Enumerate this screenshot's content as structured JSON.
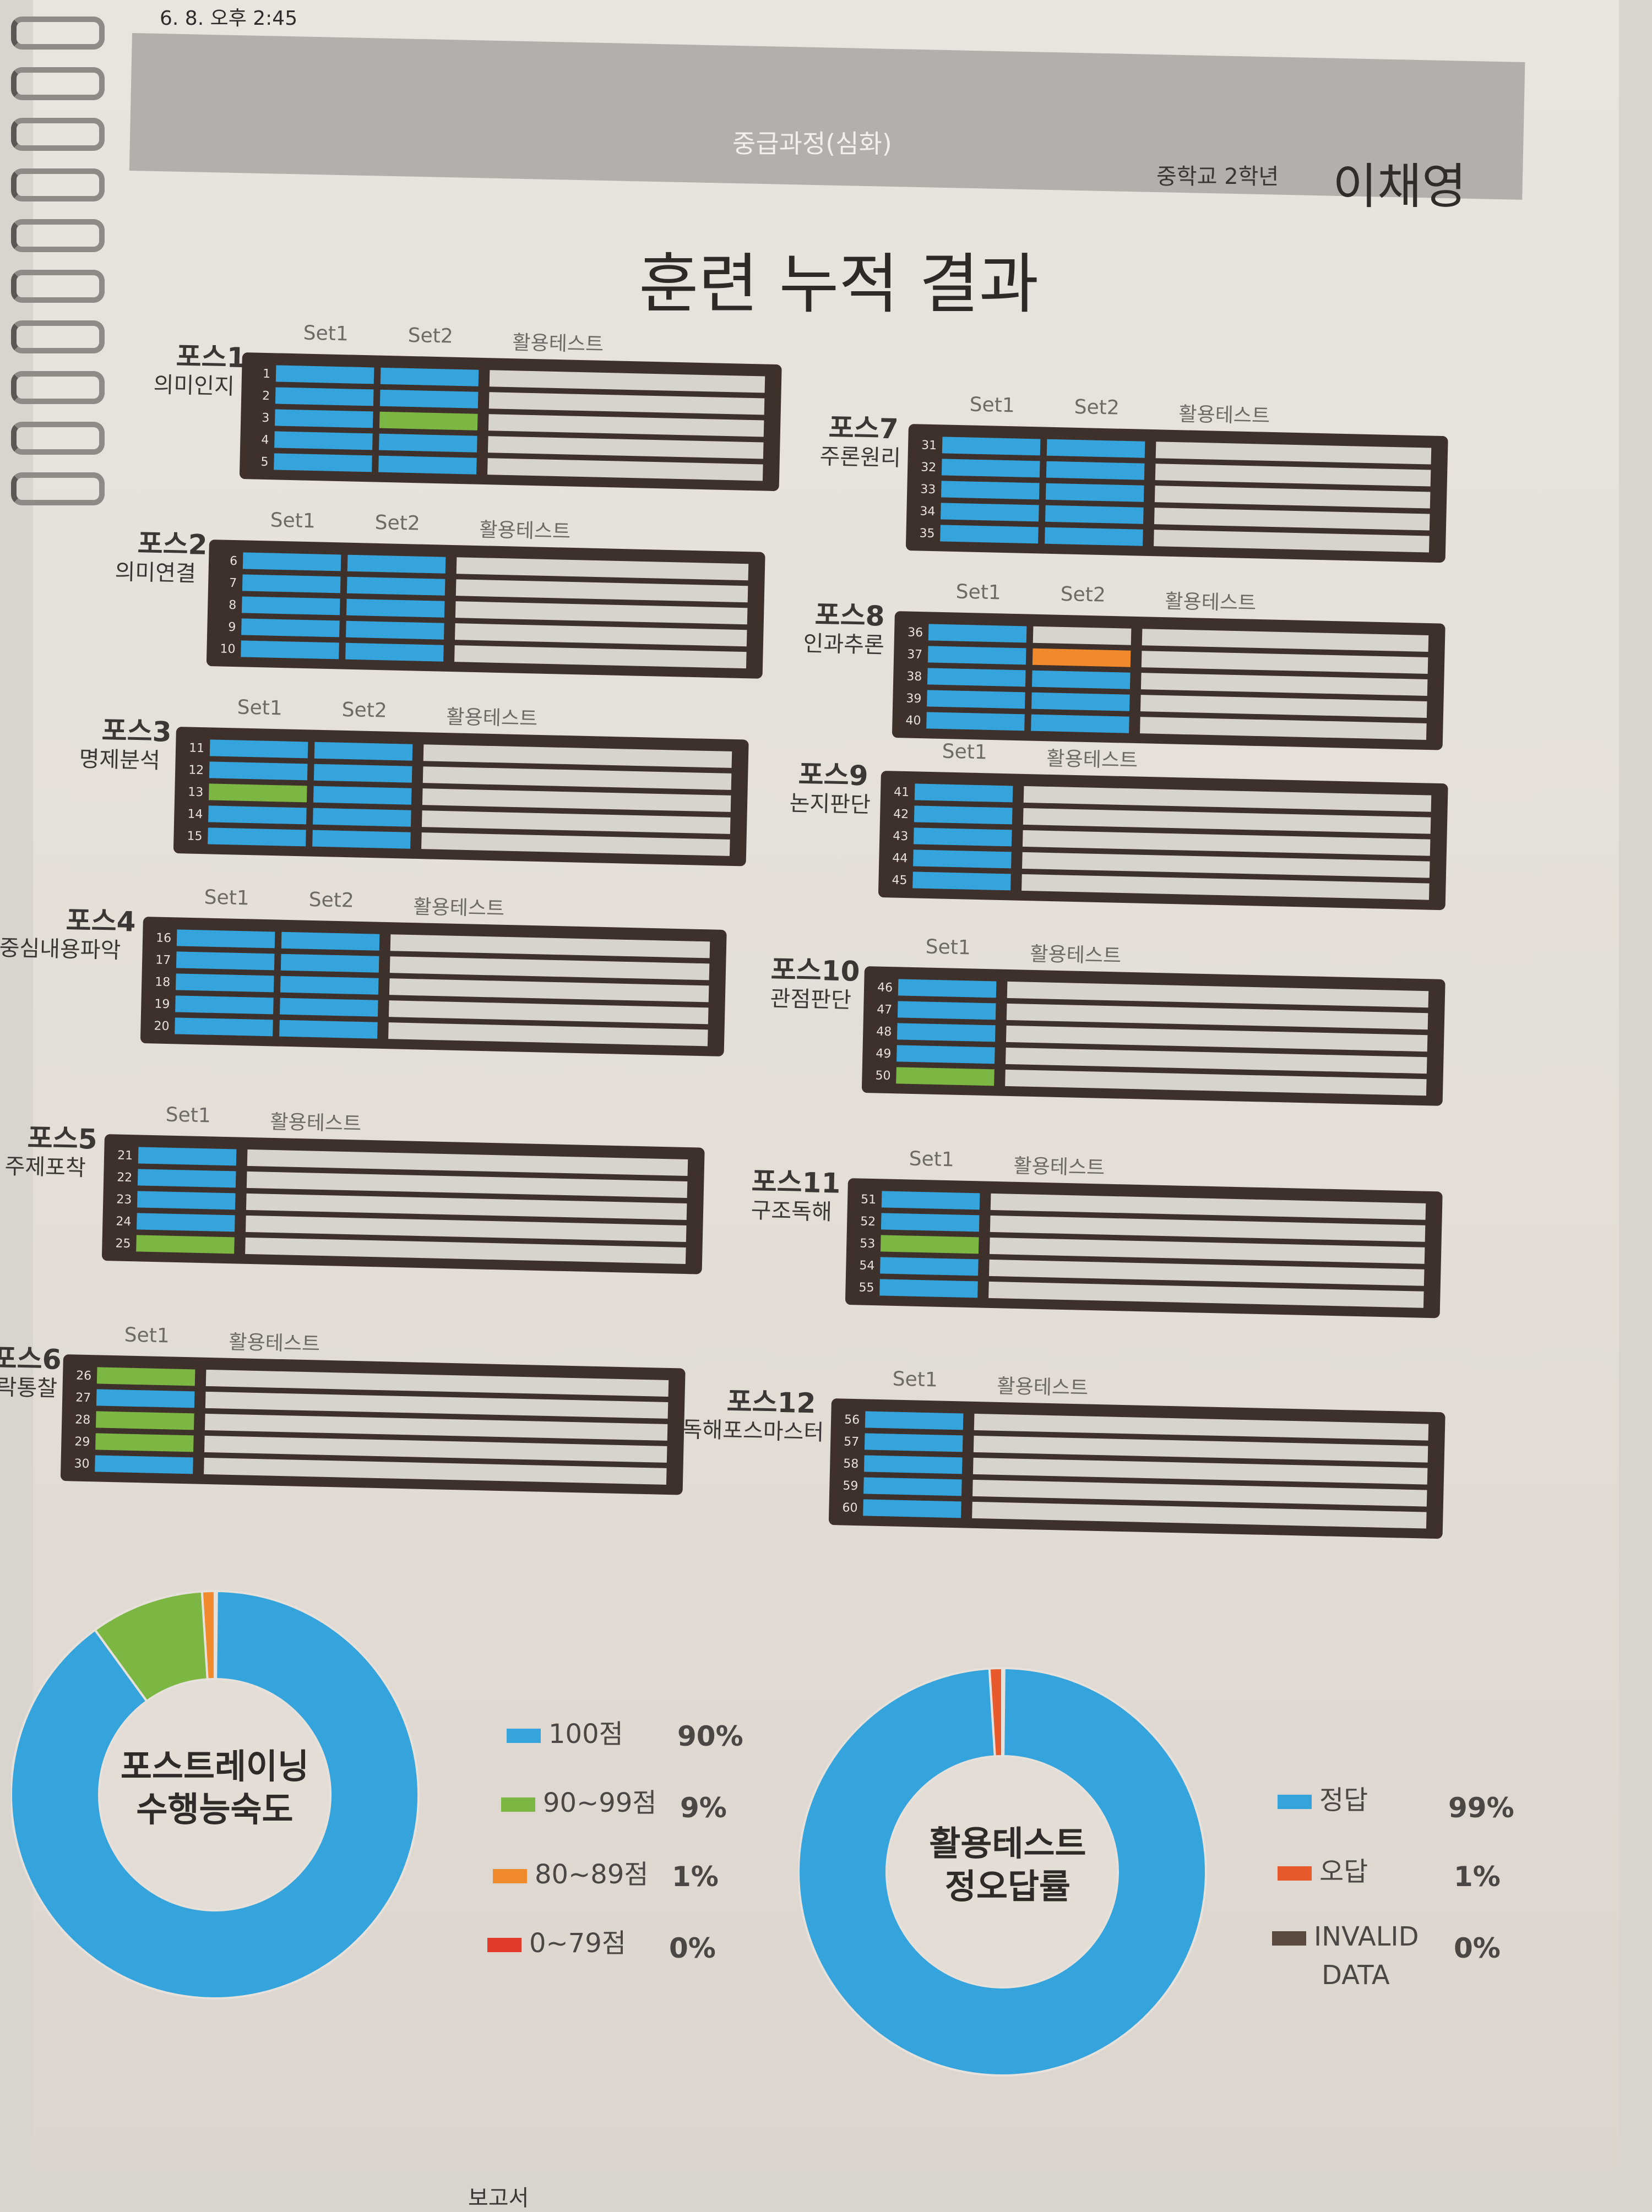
{
  "timestamp": "6. 8. 오후 2:45",
  "doc_label": "result_coaching",
  "header": {
    "course": "중급과정(심화)",
    "grade": "중학교 2학년",
    "student": "이채영"
  },
  "title": "훈련 누적 결과",
  "column_labels": {
    "set1": "Set1",
    "set2": "Set2",
    "test": "활용테스트"
  },
  "colors": {
    "blue": "#35a3dc",
    "green": "#7cb744",
    "orange": "#f08a2c",
    "red": "#e23b2b",
    "dark": "#5a4a40"
  },
  "forces": [
    {
      "name": "포스1",
      "sub": "의미인지",
      "start": 1,
      "sets": 2,
      "set1": [
        "blue",
        "blue",
        "blue",
        "blue",
        "blue"
      ],
      "set2": [
        "blue",
        "blue",
        "green",
        "blue",
        "blue"
      ]
    },
    {
      "name": "포스2",
      "sub": "의미연결",
      "start": 6,
      "sets": 2,
      "set1": [
        "blue",
        "blue",
        "blue",
        "blue",
        "blue"
      ],
      "set2": [
        "blue",
        "blue",
        "blue",
        "blue",
        "blue"
      ]
    },
    {
      "name": "포스3",
      "sub": "명제분석",
      "start": 11,
      "sets": 2,
      "set1": [
        "blue",
        "blue",
        "green",
        "blue",
        "blue"
      ],
      "set2": [
        "blue",
        "blue",
        "blue",
        "blue",
        "blue"
      ]
    },
    {
      "name": "포스4",
      "sub": "중심내용파악",
      "start": 16,
      "sets": 2,
      "set1": [
        "blue",
        "blue",
        "blue",
        "blue",
        "blue"
      ],
      "set2": [
        "blue",
        "blue",
        "blue",
        "blue",
        "blue"
      ]
    },
    {
      "name": "포스5",
      "sub": "주제포착",
      "start": 21,
      "sets": 1,
      "set1": [
        "blue",
        "blue",
        "blue",
        "blue",
        "green"
      ]
    },
    {
      "name": "포스6",
      "sub": "락통찰",
      "start": 26,
      "sets": 1,
      "set1": [
        "green",
        "blue",
        "green",
        "green",
        "blue"
      ]
    },
    {
      "name": "포스7",
      "sub": "주론원리",
      "start": 31,
      "sets": 2,
      "set1": [
        "blue",
        "blue",
        "blue",
        "blue",
        "blue"
      ],
      "set2": [
        "blue",
        "blue",
        "blue",
        "blue",
        "blue"
      ]
    },
    {
      "name": "포스8",
      "sub": "인과추론",
      "start": 36,
      "sets": 2,
      "set1": [
        "blue",
        "blue",
        "blue",
        "blue",
        "blue"
      ],
      "set2": [
        "empty",
        "orange",
        "blue",
        "blue",
        "blue"
      ]
    },
    {
      "name": "포스9",
      "sub": "논지판단",
      "start": 41,
      "sets": 1,
      "set1": [
        "blue",
        "blue",
        "blue",
        "blue",
        "blue"
      ]
    },
    {
      "name": "포스10",
      "sub": "관점판단",
      "start": 46,
      "sets": 1,
      "set1": [
        "blue",
        "blue",
        "blue",
        "blue",
        "green"
      ]
    },
    {
      "name": "포스11",
      "sub": "구조독해",
      "start": 51,
      "sets": 1,
      "set1": [
        "blue",
        "blue",
        "green",
        "blue",
        "blue"
      ]
    },
    {
      "name": "포스12",
      "sub": "독해포스마스터",
      "start": 56,
      "sets": 1,
      "set1": [
        "blue",
        "blue",
        "blue",
        "blue",
        "blue"
      ]
    }
  ],
  "chart_data": [
    {
      "type": "pie",
      "title": "포스트레이닝 수행능숙도",
      "categories": [
        "100점",
        "90~99점",
        "80~89점",
        "0~79점"
      ],
      "values": [
        90,
        9,
        1,
        0
      ],
      "labels": [
        "90%",
        "9%",
        "1%",
        "0%"
      ],
      "colors": [
        "#35a3dc",
        "#7cb744",
        "#f08a2c",
        "#e23b2b"
      ]
    },
    {
      "type": "pie",
      "title": "활용테스트 정오답률",
      "categories": [
        "정답",
        "오답",
        "INVALID DATA"
      ],
      "values": [
        99,
        1,
        0
      ],
      "labels": [
        "99%",
        "1%",
        "0%"
      ],
      "colors": [
        "#35a3dc",
        "#e85a2b",
        "#5a4a40"
      ]
    }
  ],
  "chart_titles": {
    "a1": "포스트레이닝",
    "a2": "수행능숙도",
    "b1": "활용테스트",
    "b2": "정오답률"
  },
  "legend_a": [
    {
      "label": "100점",
      "pct": "90%"
    },
    {
      "label": "90~99점",
      "pct": "9%"
    },
    {
      "label": "80~89점",
      "pct": "1%"
    },
    {
      "label": "0~79점",
      "pct": "0%"
    }
  ],
  "legend_b": [
    {
      "label": "정답",
      "pct": "99%"
    },
    {
      "label": "오답",
      "pct": "1%"
    },
    {
      "label": "INVALID",
      "label2": "DATA",
      "pct": "0%"
    }
  ],
  "bottom_text": "보고서"
}
